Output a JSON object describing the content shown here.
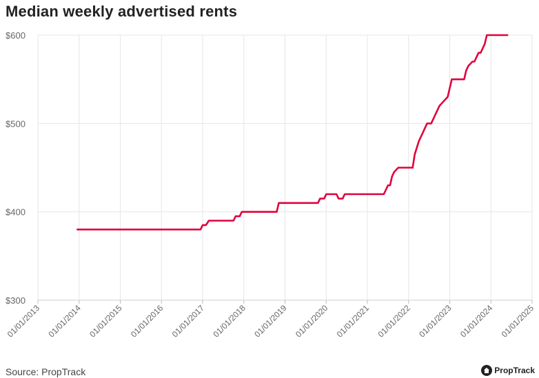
{
  "page": {
    "title": "Median weekly advertised rents",
    "source": "Source: PropTrack",
    "brand": "PropTrack"
  },
  "colors": {
    "series": "#e0003c",
    "grid": "#e6e6e6",
    "tick_text": "#666666"
  },
  "chart_data": {
    "type": "line",
    "title": "Median weekly advertised rents",
    "xlabel": "",
    "ylabel": "",
    "ylim": [
      300,
      600
    ],
    "yticks": [
      300,
      400,
      500,
      600
    ],
    "ytick_labels": [
      "$300",
      "$400",
      "$500",
      "$600"
    ],
    "xlim": [
      2013.0,
      2025.0
    ],
    "xticks": [
      2013,
      2014,
      2015,
      2016,
      2017,
      2018,
      2019,
      2020,
      2021,
      2022,
      2023,
      2024,
      2025
    ],
    "xtick_labels": [
      "01/01/2013",
      "01/01/2014",
      "01/01/2015",
      "01/01/2016",
      "01/01/2017",
      "01/01/2018",
      "01/01/2019",
      "01/01/2020",
      "01/01/2021",
      "01/01/2022",
      "01/01/2023",
      "01/01/2024",
      "01/01/2025"
    ],
    "grid": true,
    "series": [
      {
        "name": "Median weekly advertised rent",
        "x": [
          2013.96,
          2016.95,
          2017.0,
          2017.08,
          2017.15,
          2017.2,
          2017.75,
          2017.8,
          2017.9,
          2017.95,
          2018.8,
          2018.85,
          2019.8,
          2019.85,
          2019.95,
          2020.0,
          2020.25,
          2020.3,
          2020.4,
          2020.45,
          2021.3,
          2021.4,
          2021.5,
          2021.55,
          2021.6,
          2021.65,
          2021.75,
          2021.8,
          2022.1,
          2022.15,
          2022.25,
          2022.35,
          2022.45,
          2022.55,
          2022.75,
          2022.85,
          2022.95,
          2023.05,
          2023.1,
          2023.35,
          2023.4,
          2023.45,
          2023.55,
          2023.6,
          2023.7,
          2023.75,
          2023.85,
          2023.9,
          2024.0,
          2024.4
        ],
        "values": [
          380,
          380,
          385,
          385,
          390,
          390,
          390,
          395,
          395,
          400,
          400,
          410,
          410,
          415,
          415,
          420,
          420,
          415,
          415,
          420,
          420,
          420,
          430,
          430,
          440,
          445,
          450,
          450,
          450,
          465,
          480,
          490,
          500,
          500,
          520,
          525,
          530,
          550,
          550,
          550,
          560,
          565,
          570,
          570,
          580,
          580,
          590,
          600,
          600,
          600
        ]
      }
    ]
  }
}
